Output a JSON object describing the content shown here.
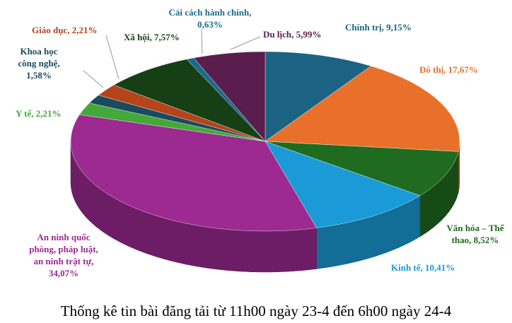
{
  "chart_data": {
    "type": "pie3d",
    "title": "Thống kê tin bài đăng tải từ 11h00 ngày 23-4 đến 6h00 ngày 24-4",
    "values": [
      9.15,
      17.67,
      8.52,
      10.41,
      34.07,
      2.21,
      1.58,
      2.21,
      7.57,
      0.63,
      5.99
    ],
    "value_labels": [
      [
        "Chính trị, 9,15%"
      ],
      [
        "Đô thị, 17,67%"
      ],
      [
        "Văn hóa – Thể",
        "thao, 8,52%"
      ],
      [
        "Kinh tế, 10,41%"
      ],
      [
        "An ninh quốc",
        "phòng, pháp luật,",
        "an ninh trật tự,",
        "34,07%"
      ],
      [
        "Y tế, 2,21%"
      ],
      [
        "Khoa học",
        "công nghệ,",
        "1,58%"
      ],
      [
        "Giáo dục, 2,21%"
      ],
      [
        "Xã hội, 7,57%"
      ],
      [
        "Cải cách hành chính,",
        "0,63%"
      ],
      [
        "Du lịch, 5,99%"
      ]
    ],
    "colors": [
      "#1b6283",
      "#e8702a",
      "#1f6b1f",
      "#1a9bd7",
      "#9c2a90",
      "#44a83a",
      "#1a4a5e",
      "#b4441a",
      "#163f16",
      "#1a6a8a",
      "#5a1e4e"
    ]
  }
}
